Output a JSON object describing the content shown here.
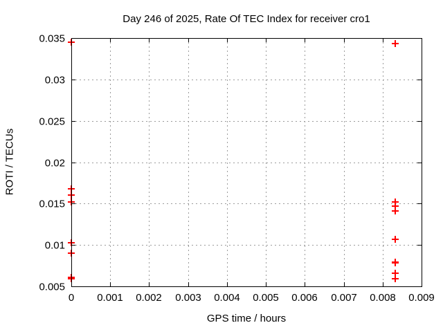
{
  "page": {
    "background": "#ffffff"
  },
  "chart_data": {
    "type": "scatter",
    "title": "Day 246 of 2025, Rate Of TEC Index for receiver cro1",
    "xlabel": "GPS time / hours",
    "ylabel": "ROTI / TECUs",
    "xlim": [
      0,
      0.009
    ],
    "ylim": [
      0.005,
      0.035
    ],
    "grid": true,
    "legend_position": "none",
    "marker": "plus",
    "marker_color": "#ff0000",
    "frame_color": "#000000",
    "grid_color": "#9a9a9a",
    "xticks": [
      {
        "value": 0,
        "label": "0"
      },
      {
        "value": 0.001,
        "label": "0.001"
      },
      {
        "value": 0.002,
        "label": "0.002"
      },
      {
        "value": 0.003,
        "label": "0.003"
      },
      {
        "value": 0.004,
        "label": "0.004"
      },
      {
        "value": 0.005,
        "label": "0.005"
      },
      {
        "value": 0.006,
        "label": "0.006"
      },
      {
        "value": 0.007,
        "label": "0.007"
      },
      {
        "value": 0.008,
        "label": "0.008"
      },
      {
        "value": 0.009,
        "label": "0.009"
      }
    ],
    "yticks": [
      {
        "value": 0.005,
        "label": "0.005"
      },
      {
        "value": 0.01,
        "label": "0.01"
      },
      {
        "value": 0.015,
        "label": "0.015"
      },
      {
        "value": 0.02,
        "label": "0.02"
      },
      {
        "value": 0.025,
        "label": "0.025"
      },
      {
        "value": 0.03,
        "label": "0.03"
      },
      {
        "value": 0.035,
        "label": "0.035"
      }
    ],
    "series": [
      {
        "name": "ROTI",
        "points": [
          {
            "x": 0,
            "y": 0.0345
          },
          {
            "x": 0,
            "y": 0.0168
          },
          {
            "x": 0,
            "y": 0.016
          },
          {
            "x": 0,
            "y": 0.0152
          },
          {
            "x": 0,
            "y": 0.0103
          },
          {
            "x": 0,
            "y": 0.009
          },
          {
            "x": 0,
            "y": 0.0061
          },
          {
            "x": 0,
            "y": 0.0059
          },
          {
            "x": 0.00833,
            "y": 0.0343
          },
          {
            "x": 0.00833,
            "y": 0.0152
          },
          {
            "x": 0.00833,
            "y": 0.0147
          },
          {
            "x": 0.00833,
            "y": 0.0141
          },
          {
            "x": 0.00833,
            "y": 0.0107
          },
          {
            "x": 0.00833,
            "y": 0.0079
          },
          {
            "x": 0.00833,
            "y": 0.0078
          },
          {
            "x": 0.00833,
            "y": 0.0066
          },
          {
            "x": 0.00833,
            "y": 0.0059
          }
        ]
      }
    ]
  }
}
